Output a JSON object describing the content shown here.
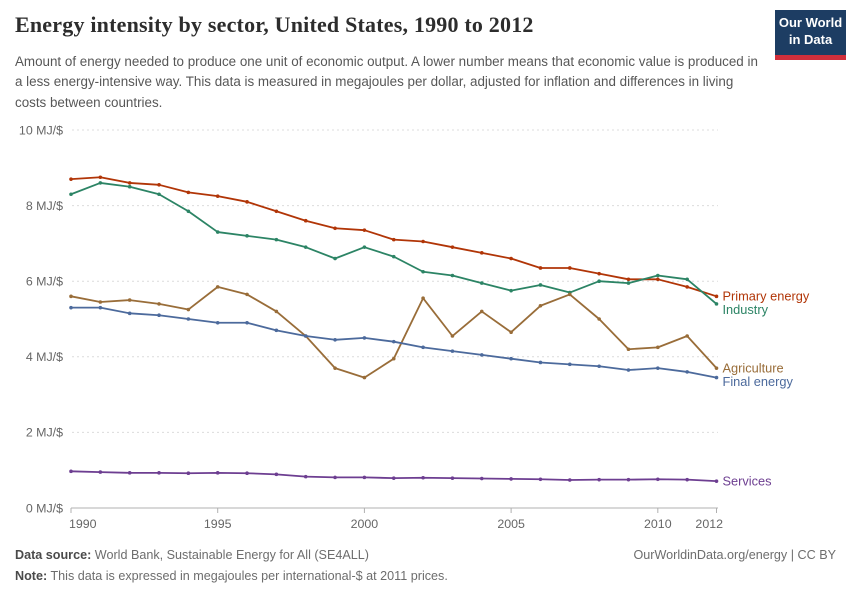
{
  "header": {
    "title": "Energy intensity by sector, United States, 1990 to 2012",
    "subtitle": "Amount of energy needed to produce one unit of economic output. A lower number means that economic value is produced in a less energy-intensive way. This data is measured in megajoules per dollar, adjusted for inflation and differences in living costs between countries.",
    "logo": {
      "line1": "Our World",
      "line2": "in Data",
      "bg": "#1d3d63",
      "bar": "#d12f3b"
    }
  },
  "chart_data": {
    "type": "line",
    "title": "Energy intensity by sector, United States, 1990 to 2012",
    "x": [
      1990,
      1991,
      1992,
      1993,
      1994,
      1995,
      1996,
      1997,
      1998,
      1999,
      2000,
      2001,
      2002,
      2003,
      2004,
      2005,
      2006,
      2007,
      2008,
      2009,
      2010,
      2011,
      2012
    ],
    "x_ticks": [
      1990,
      1995,
      2000,
      2005,
      2010,
      2012
    ],
    "y_ticks": [
      0,
      2,
      4,
      6,
      8,
      10
    ],
    "y_tick_suffix": " MJ/$",
    "xlim": [
      1990,
      2012
    ],
    "ylim": [
      0,
      10
    ],
    "grid": "horizontal-dashed",
    "legend_position": "right-end-labels",
    "xlabel": "",
    "ylabel": "megajoules per international-$",
    "series": [
      {
        "name": "Primary energy",
        "color": "#b13507",
        "values": [
          8.7,
          8.75,
          8.6,
          8.55,
          8.35,
          8.25,
          8.1,
          7.85,
          7.6,
          7.4,
          7.35,
          7.1,
          7.05,
          6.9,
          6.75,
          6.6,
          6.35,
          6.35,
          6.2,
          6.05,
          6.05,
          5.85,
          5.6
        ]
      },
      {
        "name": "Industry",
        "color": "#2c8465",
        "values": [
          8.3,
          8.6,
          8.5,
          8.3,
          7.85,
          7.3,
          7.2,
          7.1,
          6.9,
          6.6,
          6.9,
          6.65,
          6.25,
          6.15,
          5.95,
          5.75,
          5.9,
          5.7,
          6.0,
          5.95,
          6.15,
          6.05,
          5.4
        ]
      },
      {
        "name": "Agriculture",
        "color": "#996d39",
        "values": [
          5.6,
          5.45,
          5.5,
          5.4,
          5.25,
          5.85,
          5.65,
          5.2,
          4.55,
          3.7,
          3.45,
          3.95,
          5.55,
          4.55,
          5.2,
          4.65,
          5.35,
          5.65,
          5.0,
          4.2,
          4.25,
          4.55,
          3.7
        ]
      },
      {
        "name": "Final energy",
        "color": "#4c6a9c",
        "values": [
          5.3,
          5.3,
          5.15,
          5.1,
          5.0,
          4.9,
          4.9,
          4.7,
          4.55,
          4.45,
          4.5,
          4.4,
          4.25,
          4.15,
          4.05,
          3.95,
          3.85,
          3.8,
          3.75,
          3.65,
          3.7,
          3.6,
          3.45
        ]
      },
      {
        "name": "Services",
        "color": "#6d3e91",
        "values": [
          0.97,
          0.95,
          0.93,
          0.93,
          0.92,
          0.93,
          0.92,
          0.89,
          0.83,
          0.81,
          0.81,
          0.79,
          0.8,
          0.79,
          0.78,
          0.77,
          0.76,
          0.74,
          0.75,
          0.75,
          0.76,
          0.75,
          0.71
        ]
      }
    ]
  },
  "footer": {
    "source_label": "Data source:",
    "source_value": " World Bank, Sustainable Energy for All (SE4ALL)",
    "credit": "OurWorldinData.org/energy | CC BY",
    "note_label": "Note:",
    "note_value": " This data is expressed in megajoules per international-$ at 2011 prices."
  }
}
